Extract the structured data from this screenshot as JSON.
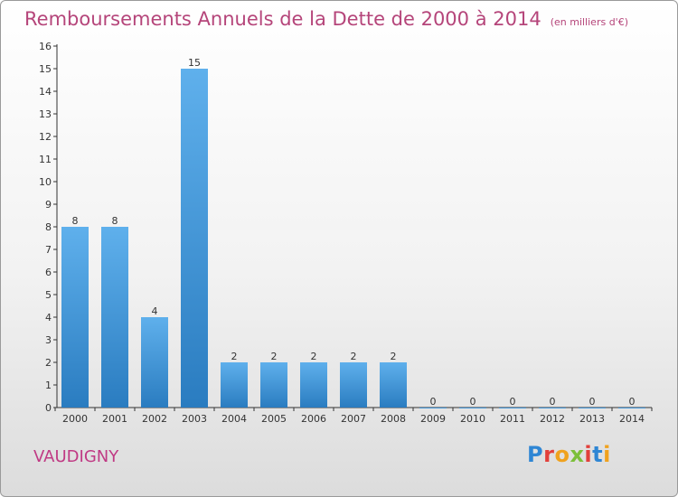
{
  "header": {
    "title": "Remboursements Annuels de la Dette de 2000 à 2014",
    "unit": "(en milliers d'€)"
  },
  "footer": {
    "commune": "VAUDIGNY",
    "logo_text": "Proxiti",
    "logo_colors": [
      "#2f86d4",
      "#e2403b",
      "#f0a21e",
      "#7cbf3a",
      "#e2403b",
      "#2f86d4",
      "#f0a21e"
    ]
  },
  "colors": {
    "title": "#b5457a",
    "bar_light": "#5fb0ec",
    "bar_dark": "#2a7cc0",
    "axis": "#333333"
  },
  "chart_data": {
    "type": "bar",
    "title": "Remboursements Annuels de la Dette de 2000 à 2014",
    "ylabel": "",
    "xlabel": "",
    "categories": [
      "2000",
      "2001",
      "2002",
      "2003",
      "2004",
      "2005",
      "2006",
      "2007",
      "2008",
      "2009",
      "2010",
      "2011",
      "2012",
      "2013",
      "2014"
    ],
    "values": [
      8,
      8,
      4,
      15,
      2,
      2,
      2,
      2,
      2,
      0,
      0,
      0,
      0,
      0,
      0
    ],
    "ylim": [
      0,
      16
    ],
    "yticks": [
      0,
      1,
      2,
      3,
      4,
      5,
      6,
      7,
      8,
      9,
      10,
      11,
      12,
      13,
      14,
      15,
      16
    ],
    "grid": false,
    "legend": "none"
  }
}
